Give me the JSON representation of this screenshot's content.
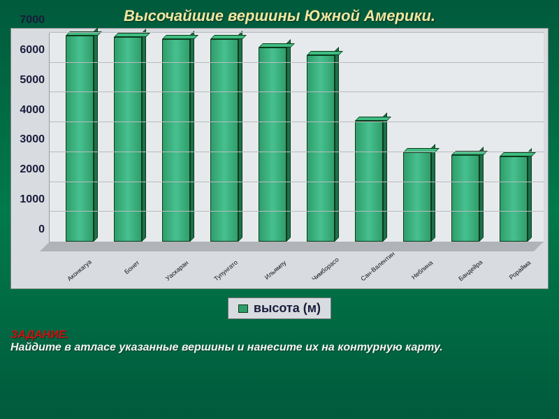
{
  "chart": {
    "type": "bar",
    "title": "Высочайшие вершины Южной Америки.",
    "title_fontsize": 22,
    "title_color": "#f0e6a0",
    "categories": [
      "Аконкагуа",
      "Бонет",
      "Уаскаран",
      "Тупунгато",
      "Ильямпу",
      "Чимборасо",
      "Сан-Валентин",
      "Неблина",
      "Бандейра",
      "Рорайма"
    ],
    "values": [
      6900,
      6850,
      6800,
      6800,
      6500,
      6250,
      4050,
      3000,
      2900,
      2850
    ],
    "ylim": [
      0,
      7000
    ],
    "ytick_step": 1000,
    "yticks": [
      0,
      1000,
      2000,
      3000,
      4000,
      5000,
      6000,
      7000
    ],
    "bar_color_front": "#2f9e6a",
    "bar_color_top": "#3fbd82",
    "bar_color_side": "#1e704a",
    "bar_border": "#0a3a1a",
    "plot_bg": "#e6eaec",
    "frame_bg": "#d8dce0",
    "grid_color": "#b8bcc0",
    "floor_color": "#b0b4b8",
    "axis_label_color": "#1a1a3a",
    "axis_fontsize": 16,
    "xlabel_fontsize": 9,
    "background_gradient": [
      "#005a3c",
      "#007a4a",
      "#005a3c"
    ],
    "legend": {
      "label": "высота (м)",
      "swatch_color": "#2f9e6a",
      "fontsize": 18
    }
  },
  "task": {
    "head": "ЗАДАНИЕ.",
    "body": "Найдите в атласе указанные вершины и нанесите их на контурную карту.",
    "head_color": "#d01010",
    "body_color": "#f5f5f5",
    "fontsize": 16
  }
}
